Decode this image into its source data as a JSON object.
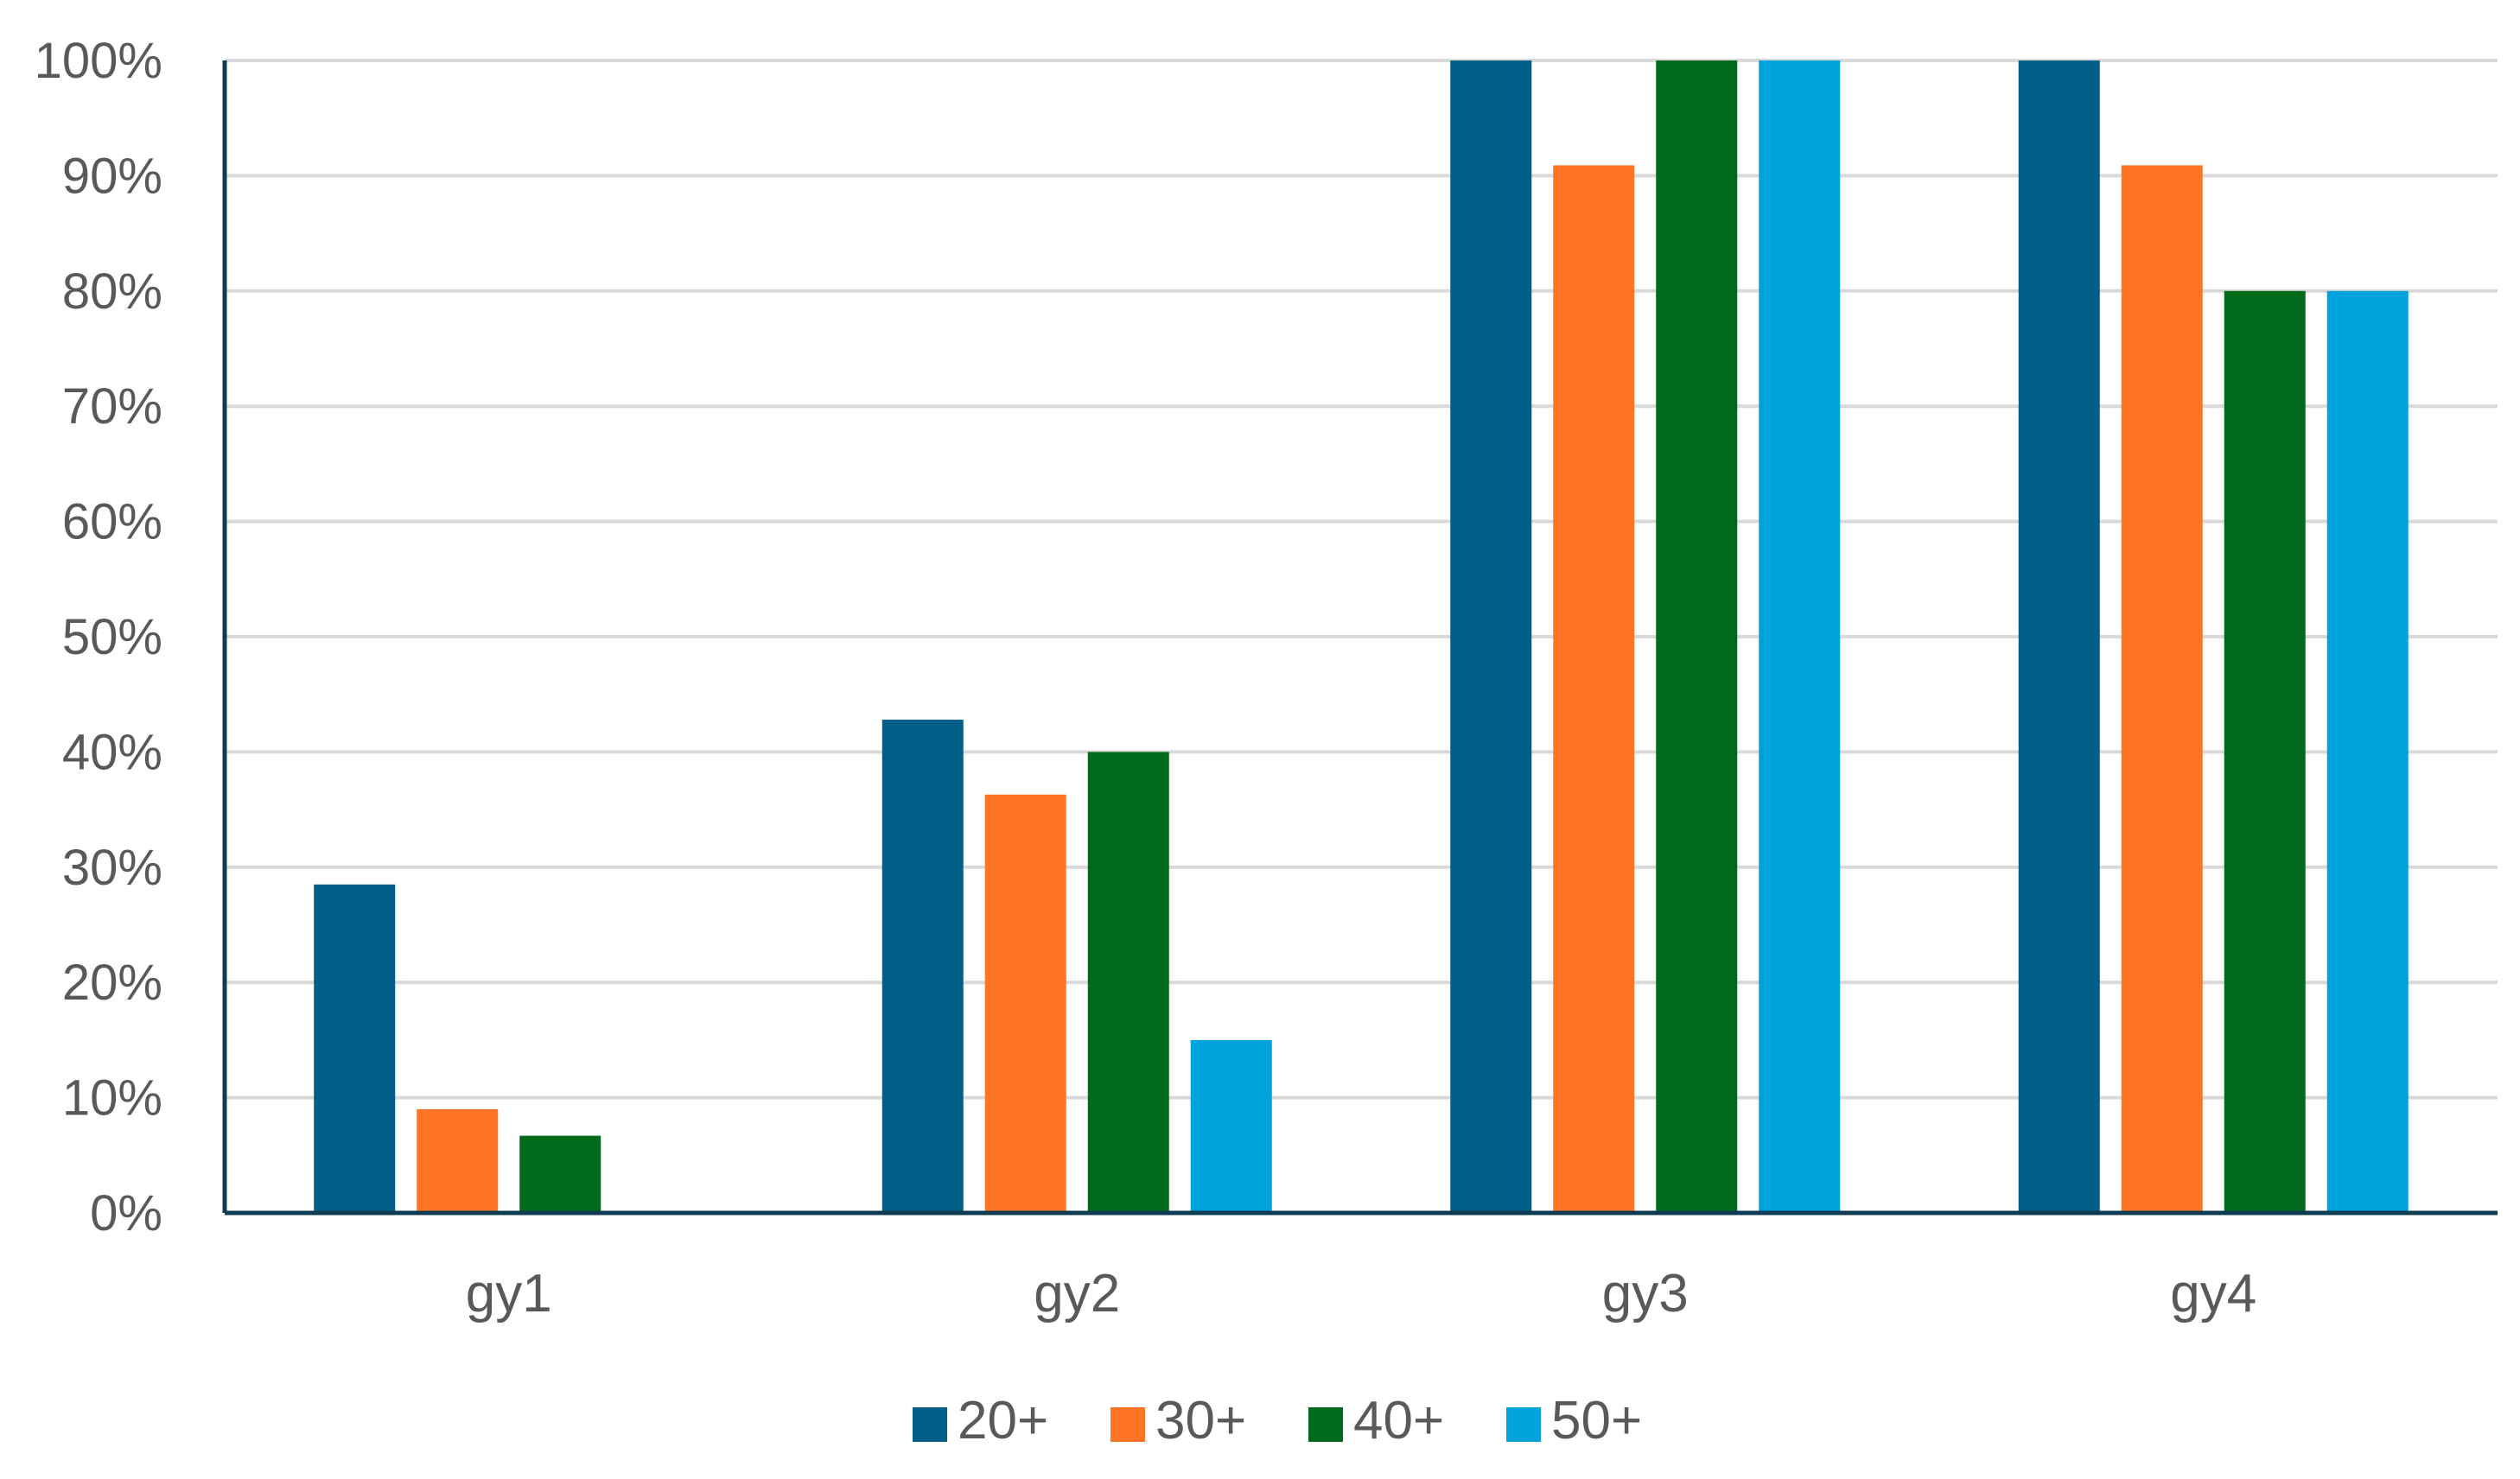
{
  "chart_data": {
    "type": "bar",
    "title": "",
    "xlabel": "",
    "ylabel": "",
    "categories": [
      "gy1",
      "gy2",
      "gy3",
      "gy4"
    ],
    "series": [
      {
        "name": "20+",
        "color": "#005F86",
        "values": [
          28.5,
          42.8,
          100,
          100
        ]
      },
      {
        "name": "30+",
        "color": "#FF7527",
        "values": [
          9,
          36.3,
          90.9,
          90.9
        ]
      },
      {
        "name": "40+",
        "color": "#006A1A",
        "values": [
          6.7,
          40,
          100,
          80
        ]
      },
      {
        "name": "50+",
        "color": "#00A2DB",
        "values": [
          0,
          15,
          100,
          80
        ]
      }
    ],
    "ylim": [
      0,
      100
    ],
    "yticks": [
      0,
      10,
      20,
      30,
      40,
      50,
      60,
      70,
      80,
      90,
      100
    ],
    "ytick_labels": [
      "0%",
      "10%",
      "20%",
      "30%",
      "40%",
      "50%",
      "60%",
      "70%",
      "80%",
      "90%",
      "100%"
    ],
    "grid": true,
    "legend_position": "bottom"
  }
}
